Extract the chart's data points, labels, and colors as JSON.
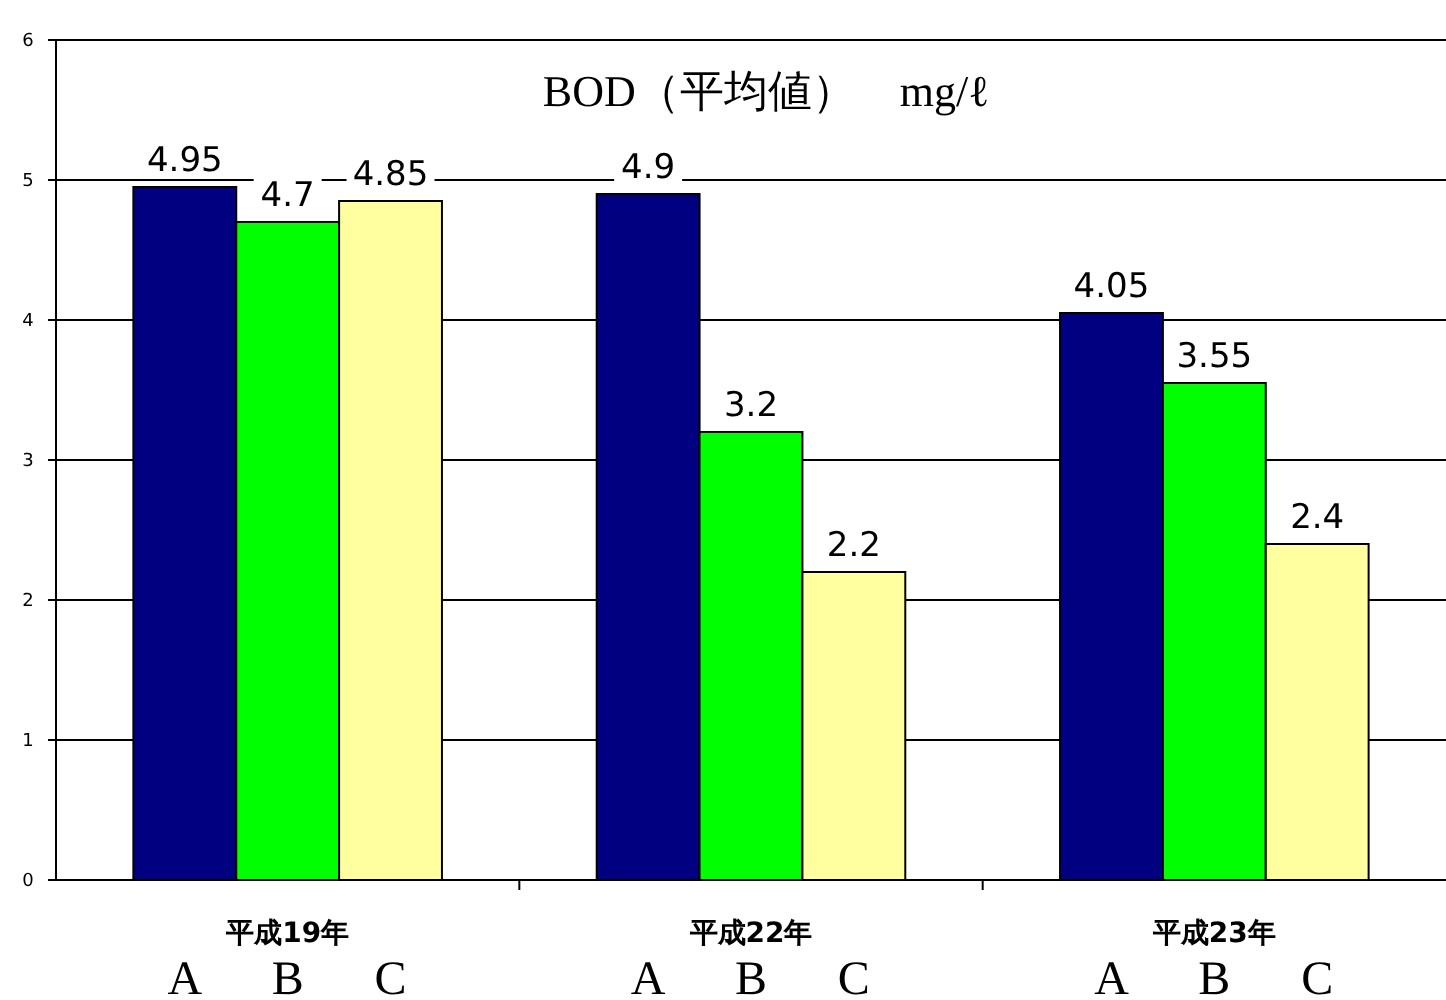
{
  "chart_data": {
    "type": "bar",
    "title": "BOD（平均値）　mg/ℓ",
    "categories": [
      "平成19年",
      "平成22年",
      "平成23年"
    ],
    "series": [
      {
        "name": "A",
        "color": "#000080",
        "values": [
          4.95,
          4.9,
          4.05
        ]
      },
      {
        "name": "B",
        "color": "#00ff00",
        "values": [
          4.7,
          3.2,
          3.55
        ]
      },
      {
        "name": "C",
        "color": "#ffffa0",
        "values": [
          4.85,
          2.2,
          2.4
        ]
      }
    ],
    "ylim": [
      0,
      6
    ],
    "yticks": [
      0,
      1,
      2,
      3,
      4,
      5,
      6
    ],
    "grid": "y",
    "data_labels": true
  }
}
